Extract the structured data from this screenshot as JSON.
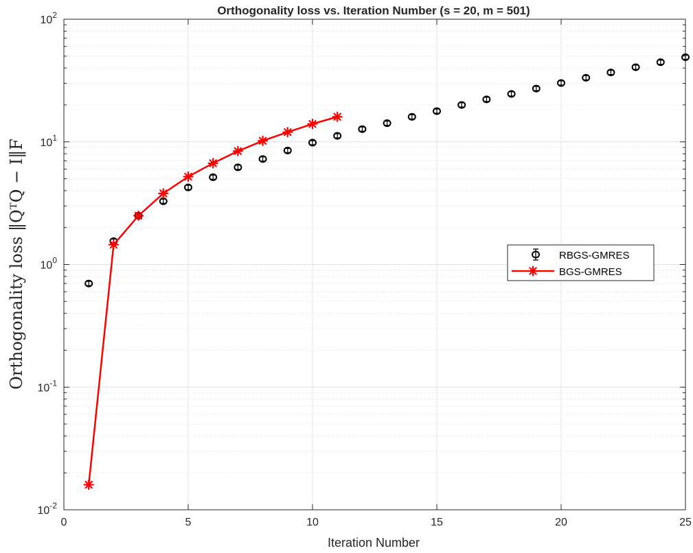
{
  "chart_data": {
    "type": "scatter",
    "title": "Orthogonality loss vs. Iteration Number (s = 20, m = 501)",
    "xlabel": "Iteration Number",
    "ylabel": "Orthogonality loss ‖QᵀQ − I‖F",
    "xlim": [
      0,
      25
    ],
    "ylim": [
      0.01,
      100
    ],
    "yscale": "log",
    "grid": true,
    "minor_grid": true,
    "legend_position": "right",
    "x_ticks": [
      "0",
      "5",
      "10",
      "15",
      "20",
      "25"
    ],
    "y_ticks": [
      "10^-2",
      "10^-1",
      "10^0",
      "10^1",
      "10^2"
    ],
    "series": [
      {
        "name": "RBGS-GMRES",
        "style": "errorbar-circle",
        "color": "#000000",
        "x": [
          1,
          2,
          3,
          4,
          5,
          6,
          7,
          8,
          9,
          10,
          11,
          12,
          13,
          14,
          15,
          16,
          17,
          18,
          19,
          20,
          21,
          22,
          23,
          24,
          25
        ],
        "y": [
          0.7,
          1.55,
          2.5,
          3.28,
          4.25,
          5.15,
          6.2,
          7.25,
          8.5,
          9.85,
          11.2,
          12.7,
          14.2,
          16.0,
          17.8,
          20.0,
          22.2,
          24.6,
          27.2,
          30.2,
          33.3,
          36.8,
          40.6,
          44.6,
          49.0
        ]
      },
      {
        "name": "BGS-GMRES",
        "style": "line-star",
        "color": "#ff0000",
        "x": [
          1,
          2,
          3,
          4,
          5,
          6,
          7,
          8,
          9,
          10,
          11
        ],
        "y": [
          0.016,
          1.45,
          2.5,
          3.8,
          5.2,
          6.7,
          8.4,
          10.2,
          12.0,
          14.0,
          16.0
        ]
      }
    ]
  }
}
